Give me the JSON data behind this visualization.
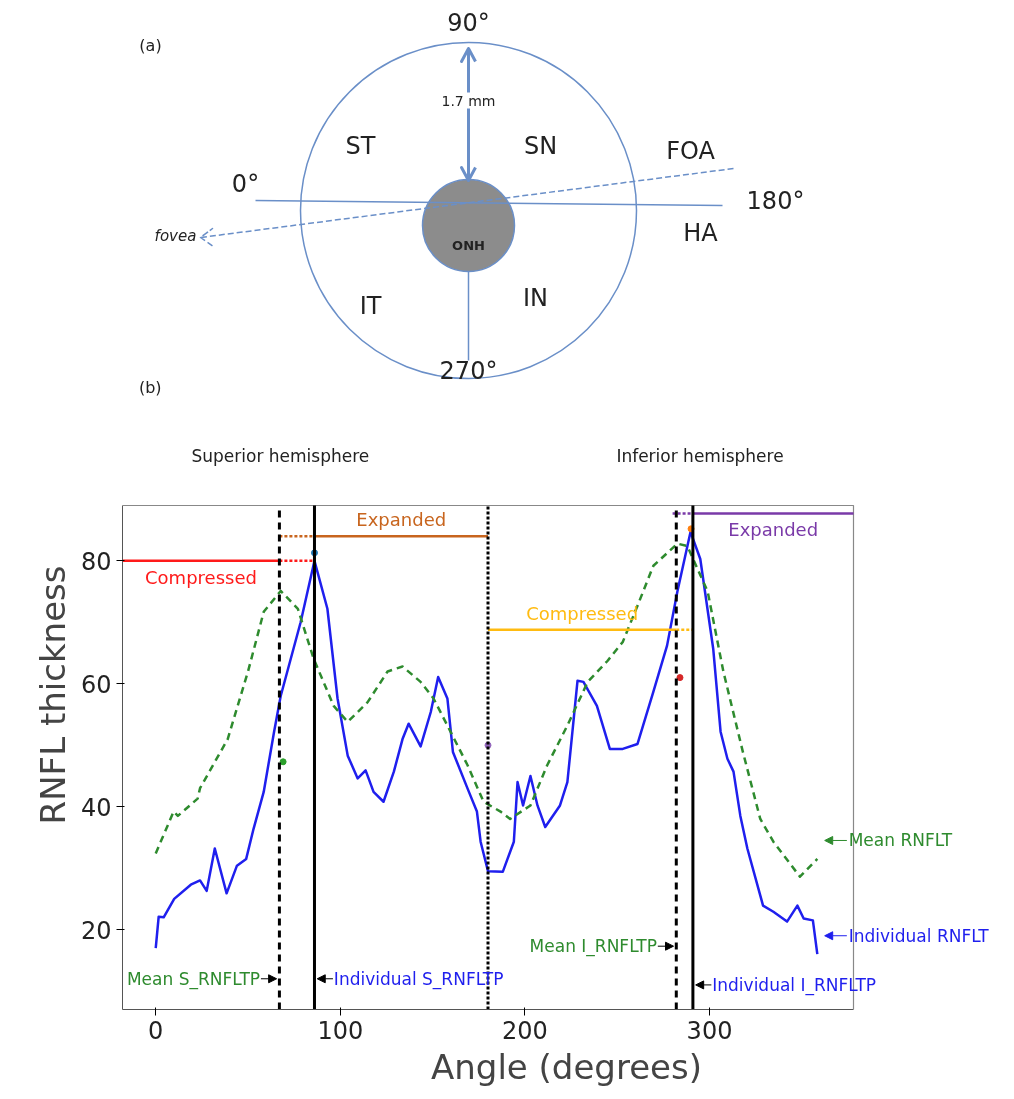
{
  "chart_data": [
    {
      "type": "other",
      "annotations": [
        "(a)",
        "90°",
        "1.7 mm",
        "ST",
        "SN",
        "FOA",
        "0°",
        "180°",
        "ONH",
        "HA",
        "fovea",
        "IT",
        "IN",
        "270°"
      ]
    },
    {
      "type": "line",
      "xlabel": "Angle (degrees)",
      "ylabel": "RNFL thickness",
      "xlim": [
        -18,
        378
      ],
      "ylim": [
        7,
        89
      ],
      "xticks": [
        0,
        100,
        200,
        300
      ],
      "yticks": [
        20,
        40,
        60,
        80
      ],
      "annotations": [
        "Superior hemisphere",
        "Inferior hemisphere",
        "(b)"
      ],
      "legend": "right",
      "ref_lines": [
        {
          "axis": "x",
          "value": 67,
          "label": "Mean S_RNFLTP",
          "color": "#000000",
          "line_style": "dashed"
        },
        {
          "axis": "x",
          "value": 86,
          "label": "Individual S_RNFLTP",
          "color": "#000000",
          "line_style": "solid"
        },
        {
          "axis": "x",
          "value": 180,
          "color": "#000000",
          "line_style": "dotted"
        },
        {
          "axis": "x",
          "value": 282,
          "label": "Mean I_RNFLTP",
          "color": "#000000",
          "line_style": "dashed"
        },
        {
          "axis": "x",
          "value": 291,
          "label": "Individual I_RNFLTP",
          "color": "#000000",
          "line_style": "solid"
        }
      ],
      "series": [
        {
          "name": "Individual RNFLT",
          "color": "#1f1fee",
          "line_style": "solid",
          "x": [
            0,
            1.6,
            4.3,
            10,
            19,
            24,
            27.6,
            32,
            38.4,
            44,
            49,
            53,
            58.5,
            64,
            67.7,
            78.5,
            86,
            93,
            98.5,
            104,
            109.4,
            113.7,
            118,
            123.4,
            129,
            133.7,
            137,
            143.5,
            149,
            153,
            158,
            161,
            169,
            174,
            176,
            180,
            188,
            194,
            196,
            199,
            203,
            206.8,
            211,
            219,
            223,
            228.5,
            231.7,
            239,
            246,
            253,
            261,
            264,
            269.6,
            277,
            282.6,
            289.7,
            295,
            302,
            306,
            309.7,
            313,
            316.7,
            320.5,
            329,
            334.6,
            342,
            347.6,
            351,
            356,
            358.4
          ],
          "values": [
            17,
            22.1,
            22,
            25,
            27.3,
            28,
            26.3,
            33.2,
            25.9,
            30.4,
            31.5,
            36.4,
            42.4,
            52,
            58,
            70,
            80,
            72.2,
            57.6,
            48.3,
            44.6,
            45.9,
            42.4,
            40.8,
            45.7,
            51,
            53.5,
            49.8,
            55.4,
            61.1,
            57.6,
            48.9,
            42.9,
            39.2,
            34.3,
            29.5,
            29.4,
            34.3,
            44,
            40.2,
            45,
            40.2,
            36.7,
            40.2,
            44,
            60.5,
            60.3,
            56.4,
            49.4,
            49.4,
            50.2,
            53.2,
            58.7,
            66.2,
            75,
            84.7,
            80.3,
            65.7,
            52.2,
            47.8,
            45.7,
            38.5,
            33.2,
            23.9,
            22.9,
            21.3,
            23.9,
            21.8,
            21.5,
            16
          ]
        },
        {
          "name": "Mean RNFLT",
          "color": "#2e8b2e",
          "line_style": "dashed",
          "x": [
            0,
            9.7,
            12,
            22.7,
            24,
            39,
            50,
            58.5,
            67.7,
            77,
            85.5,
            96.4,
            104,
            114.8,
            125.6,
            133.7,
            143.5,
            150.5,
            159.7,
            169,
            177.6,
            186.8,
            192,
            203,
            212,
            223,
            234,
            244.7,
            253,
            261,
            269.6,
            282.6,
            288,
            299,
            307.5,
            318,
            327.5,
            334.6,
            349,
            358.4
          ],
          "values": [
            32.4,
            39.2,
            38.5,
            41.3,
            43,
            51,
            62,
            71.7,
            75.1,
            72.2,
            64.1,
            56.4,
            53.8,
            57,
            62,
            62.8,
            60.3,
            57.6,
            52.2,
            46.7,
            40.8,
            39.2,
            38,
            40.2,
            46.7,
            53.2,
            60.3,
            63.7,
            66.8,
            72.7,
            79.2,
            82.8,
            82.4,
            75,
            62,
            49,
            38,
            34.3,
            28.6,
            31.5
          ]
        },
        {
          "name": "Compressed",
          "color": "#ff1a1a",
          "line_style": "solid",
          "x": [
            -18,
            67
          ],
          "values": [
            80,
            80
          ]
        },
        {
          "color": "#ff1a1a",
          "line_style": "dotted",
          "x": [
            67,
            86
          ],
          "values": [
            80,
            80
          ]
        },
        {
          "name": "Expanded",
          "color": "#c8651e",
          "line_style": "solid",
          "x": [
            86,
            180
          ],
          "values": [
            84,
            84
          ]
        },
        {
          "color": "#c8651e",
          "line_style": "dotted",
          "x": [
            67,
            86
          ],
          "values": [
            84,
            84
          ]
        },
        {
          "name": "Compressed",
          "color": "#ffbb11",
          "line_style": "solid",
          "x": [
            180,
            282
          ],
          "values": [
            68.8,
            68.8
          ]
        },
        {
          "color": "#ffbb11",
          "line_style": "dotted",
          "x": [
            282,
            291
          ],
          "values": [
            68.8,
            68.8
          ]
        },
        {
          "name": "Expanded",
          "color": "#7a3aa8",
          "line_style": "solid",
          "x": [
            291,
            378
          ],
          "values": [
            87.7,
            87.7
          ]
        },
        {
          "color": "#7a3aa8",
          "line_style": "dotted",
          "x": [
            280,
            291
          ],
          "values": [
            87.7,
            87.7
          ]
        },
        {
          "type": "scatter",
          "marker": "circle",
          "x": [
            86,
            69,
            180,
            284,
            290
          ],
          "values": [
            81.3,
            47.3,
            50,
            61,
            85.2
          ],
          "colors": [
            "#1f77b4",
            "#2ca02c",
            "#9467bd",
            "#d62728",
            "#ff7f0e"
          ]
        }
      ]
    }
  ]
}
